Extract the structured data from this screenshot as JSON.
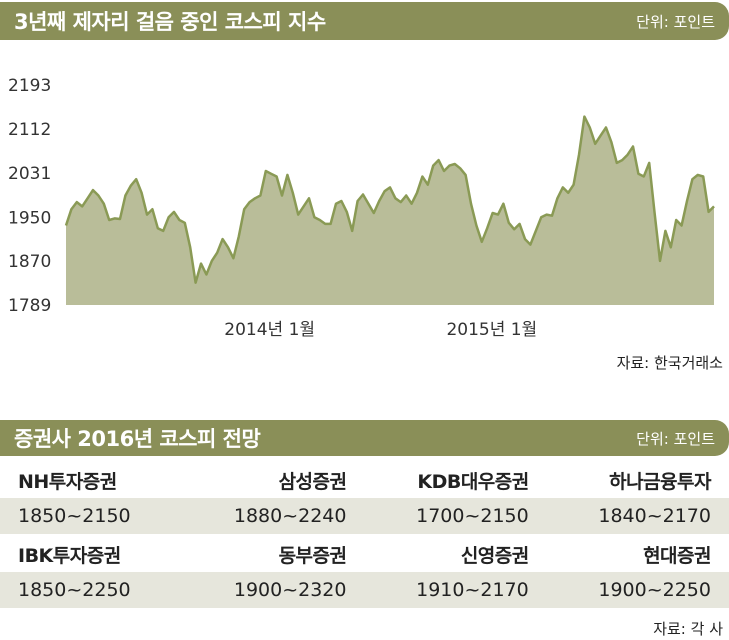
{
  "header1": {
    "title": "3년째 제자리 걸음 중인 코스피 지수",
    "unit": "단위: 포인트"
  },
  "source1": "자료: 한국거래소",
  "header2": {
    "title": "증권사 2016년 코스피 전망",
    "unit": "단위: 포인트"
  },
  "source2": "자료: 각 사",
  "colors": {
    "bar": "#8a8f58",
    "area": "#b9bd99",
    "line": "#8a9a55",
    "row": "#e6e6dc"
  },
  "chart_data": {
    "type": "area",
    "title": "3년째 제자리 걸음 중인 코스피 지수",
    "ylabel": "",
    "xlabel": "",
    "yticks": [
      1789,
      1870,
      1950,
      2031,
      2112,
      2193
    ],
    "ytick_labels": [
      "1789",
      "1870",
      "1950",
      "2031",
      "2112",
      "2193"
    ],
    "ylim": [
      1789,
      2193
    ],
    "x_tick_labels": [
      {
        "label": "2014년 1월",
        "month_index": 11
      },
      {
        "label": "2015년 1월",
        "month_index": 23
      }
    ],
    "x_range_months": [
      0,
      35
    ],
    "values": [
      1935,
      1965,
      1978,
      1970,
      1985,
      2000,
      1990,
      1975,
      1945,
      1948,
      1947,
      1990,
      2008,
      2020,
      1995,
      1955,
      1965,
      1930,
      1925,
      1950,
      1960,
      1945,
      1940,
      1895,
      1830,
      1865,
      1845,
      1870,
      1885,
      1910,
      1895,
      1875,
      1915,
      1965,
      1978,
      1985,
      1990,
      2035,
      2030,
      2025,
      1990,
      2028,
      1995,
      1955,
      1970,
      1985,
      1950,
      1945,
      1938,
      1938,
      1975,
      1980,
      1960,
      1925,
      1980,
      1992,
      1975,
      1958,
      1980,
      1998,
      2005,
      1985,
      1978,
      1990,
      1975,
      1995,
      2025,
      2010,
      2045,
      2055,
      2035,
      2045,
      2048,
      2040,
      2028,
      1975,
      1935,
      1905,
      1930,
      1958,
      1955,
      1975,
      1940,
      1928,
      1938,
      1910,
      1900,
      1925,
      1950,
      1955,
      1953,
      1985,
      2005,
      1995,
      2010,
      2065,
      2135,
      2115,
      2085,
      2100,
      2115,
      2088,
      2050,
      2055,
      2065,
      2080,
      2030,
      2025,
      2050,
      1958,
      1870,
      1925,
      1895,
      1945,
      1935,
      1980,
      2020,
      2028,
      2025,
      1960,
      1970
    ]
  },
  "forecasts": [
    {
      "name": "NH투자증권",
      "range": "1850~2150"
    },
    {
      "name": "삼성증권",
      "range": "1880~2240"
    },
    {
      "name": "KDB대우증권",
      "range": "1700~2150"
    },
    {
      "name": "하나금융투자",
      "range": "1840~2170"
    },
    {
      "name": "IBK투자증권",
      "range": "1850~2250"
    },
    {
      "name": "동부증권",
      "range": "1900~2320"
    },
    {
      "name": "신영증권",
      "range": "1910~2170"
    },
    {
      "name": "현대증권",
      "range": "1900~2250"
    }
  ]
}
